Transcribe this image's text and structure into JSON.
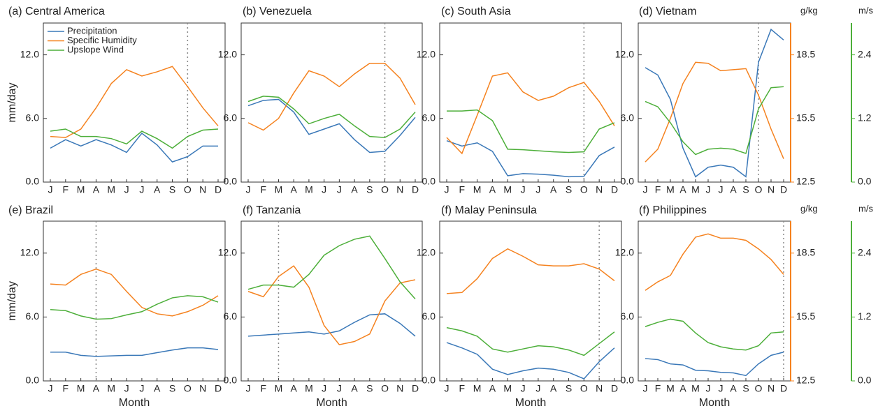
{
  "chart_data": [
    {
      "type": "line",
      "title": "(a) Central America",
      "categories": [
        "J",
        "F",
        "M",
        "A",
        "M",
        "J",
        "J",
        "A",
        "S",
        "O",
        "N",
        "D"
      ],
      "y_label": "mm/day",
      "vline_at": 9,
      "ylim": [
        0,
        15
      ],
      "yticks": [
        {
          "value": 0,
          "label": "0.0"
        },
        {
          "value": 6,
          "label": "6.0"
        },
        {
          "value": 12,
          "label": "12.0"
        }
      ],
      "y2lim": [
        12.5,
        20
      ],
      "y3lim": [
        0,
        3
      ],
      "series": [
        {
          "name": "Precipitation",
          "color": "#3a78b8",
          "values": [
            3.2,
            4.0,
            3.4,
            4.0,
            3.5,
            2.8,
            4.6,
            3.5,
            1.9,
            2.4,
            3.4,
            3.4
          ]
        },
        {
          "name": "Specific Humidity",
          "color": "#f5821f",
          "axis": "y2",
          "values": [
            14.65,
            14.6,
            15.0,
            16.0,
            17.15,
            17.8,
            17.5,
            17.7,
            17.95,
            17.0,
            16.0,
            15.15
          ]
        },
        {
          "name": "Upslope Wind",
          "color": "#4daf3a",
          "axis": "y3",
          "values": [
            0.96,
            1.0,
            0.86,
            0.86,
            0.82,
            0.72,
            0.96,
            0.82,
            0.64,
            0.86,
            0.98,
            1.0
          ]
        }
      ]
    },
    {
      "type": "line",
      "title": "(b) Venezuela",
      "categories": [
        "J",
        "F",
        "M",
        "A",
        "M",
        "J",
        "J",
        "A",
        "S",
        "O",
        "N",
        "D"
      ],
      "vline_at": 9,
      "ylim": [
        0,
        15
      ],
      "yticks": [
        {
          "value": 0,
          "label": "0.0"
        },
        {
          "value": 6,
          "label": "6.0"
        },
        {
          "value": 12,
          "label": "12.0"
        }
      ],
      "y2lim": [
        12.5,
        20
      ],
      "y3lim": [
        0,
        3
      ],
      "series": [
        {
          "color": "#3a78b8",
          "values": [
            7.2,
            7.7,
            7.8,
            6.6,
            4.5,
            5.0,
            5.5,
            4.0,
            2.8,
            2.9,
            4.4,
            6.1
          ]
        },
        {
          "color": "#f5821f",
          "axis": "y2",
          "values": [
            15.3,
            14.95,
            15.5,
            16.7,
            17.75,
            17.5,
            17.0,
            17.6,
            18.1,
            18.1,
            17.4,
            16.15
          ]
        },
        {
          "color": "#4daf3a",
          "axis": "y3",
          "values": [
            1.52,
            1.62,
            1.6,
            1.38,
            1.1,
            1.2,
            1.28,
            1.06,
            0.86,
            0.84,
            1.0,
            1.32
          ]
        }
      ]
    },
    {
      "type": "line",
      "title": "(c) South Asia",
      "categories": [
        "J",
        "F",
        "M",
        "A",
        "M",
        "J",
        "J",
        "A",
        "S",
        "O",
        "N",
        "D"
      ],
      "vline_at": 9,
      "ylim": [
        0,
        15
      ],
      "yticks": [
        {
          "value": 0,
          "label": "0.0"
        },
        {
          "value": 6,
          "label": "6.0"
        },
        {
          "value": 12,
          "label": "12.0"
        }
      ],
      "y2lim": [
        12.5,
        20
      ],
      "y3lim": [
        0,
        3
      ],
      "series": [
        {
          "color": "#3a78b8",
          "values": [
            3.9,
            3.4,
            3.7,
            2.9,
            0.6,
            0.8,
            0.75,
            0.65,
            0.5,
            0.55,
            2.5,
            3.3
          ]
        },
        {
          "color": "#f5821f",
          "axis": "y2",
          "values": [
            14.6,
            13.85,
            15.65,
            17.5,
            17.65,
            16.75,
            16.35,
            16.55,
            16.95,
            17.2,
            16.3,
            15.15
          ]
        },
        {
          "color": "#4daf3a",
          "axis": "y3",
          "values": [
            1.34,
            1.34,
            1.36,
            1.16,
            0.62,
            0.61,
            0.59,
            0.57,
            0.56,
            0.57,
            1.0,
            1.12
          ]
        }
      ]
    },
    {
      "type": "line",
      "title": "(d) Vietnam",
      "categories": [
        "J",
        "F",
        "M",
        "A",
        "M",
        "J",
        "J",
        "A",
        "S",
        "O",
        "N",
        "D"
      ],
      "vline_at": 9,
      "ylim": [
        0,
        15
      ],
      "yticks": [
        {
          "value": 0,
          "label": "0.0"
        },
        {
          "value": 6,
          "label": "6.0"
        },
        {
          "value": 12,
          "label": "12.0"
        }
      ],
      "y2lim": [
        12.5,
        20
      ],
      "y2ticks": [
        12.5,
        15.5,
        18.5
      ],
      "y2label": "g/kg",
      "y3lim": [
        0,
        3
      ],
      "y3ticks": [
        {
          "value": 0,
          "label": "0.0"
        },
        1.2,
        2.4
      ],
      "y3label": "m/s",
      "series": [
        {
          "color": "#3a78b8",
          "values": [
            10.8,
            10.1,
            7.8,
            3.2,
            0.5,
            1.4,
            1.6,
            1.4,
            0.5,
            11.3,
            14.4,
            13.4
          ]
        },
        {
          "color": "#f5821f",
          "axis": "y2",
          "values": [
            13.45,
            14.05,
            15.5,
            17.15,
            18.15,
            18.1,
            17.75,
            17.8,
            17.85,
            16.6,
            15.0,
            13.6
          ]
        },
        {
          "color": "#4daf3a",
          "axis": "y3",
          "values": [
            1.52,
            1.42,
            1.12,
            0.76,
            0.52,
            0.62,
            0.64,
            0.62,
            0.54,
            1.38,
            1.78,
            1.8
          ]
        }
      ]
    },
    {
      "type": "line",
      "title": "(e) Brazil",
      "categories": [
        "J",
        "F",
        "M",
        "A",
        "M",
        "J",
        "J",
        "A",
        "S",
        "O",
        "N",
        "D"
      ],
      "y_label": "mm/day",
      "x_label": "Month",
      "vline_at": 3,
      "ylim": [
        0,
        15
      ],
      "yticks": [
        {
          "value": 0,
          "label": "0.0"
        },
        {
          "value": 6,
          "label": "6.0"
        },
        {
          "value": 12,
          "label": "12.0"
        }
      ],
      "y2lim": [
        12.5,
        20
      ],
      "y3lim": [
        0,
        3
      ],
      "series": [
        {
          "color": "#3a78b8",
          "values": [
            2.7,
            2.7,
            2.4,
            2.3,
            2.35,
            2.4,
            2.4,
            2.65,
            2.9,
            3.1,
            3.1,
            2.95
          ]
        },
        {
          "color": "#f5821f",
          "axis": "y2",
          "values": [
            17.05,
            17.0,
            17.5,
            17.75,
            17.5,
            16.7,
            15.95,
            15.65,
            15.55,
            15.75,
            16.05,
            16.5
          ]
        },
        {
          "color": "#4daf3a",
          "axis": "y3",
          "values": [
            1.34,
            1.32,
            1.22,
            1.16,
            1.17,
            1.24,
            1.3,
            1.44,
            1.56,
            1.6,
            1.58,
            1.48
          ]
        }
      ]
    },
    {
      "type": "line",
      "title": "(f) Tanzania",
      "categories": [
        "J",
        "F",
        "M",
        "A",
        "M",
        "J",
        "J",
        "A",
        "S",
        "O",
        "N",
        "D"
      ],
      "x_label": "Month",
      "vline_at": 2,
      "ylim": [
        0,
        15
      ],
      "yticks": [
        {
          "value": 0,
          "label": "0.0"
        },
        {
          "value": 6,
          "label": "6.0"
        },
        {
          "value": 12,
          "label": "12.0"
        }
      ],
      "y2lim": [
        12.5,
        20
      ],
      "y3lim": [
        0,
        3
      ],
      "series": [
        {
          "color": "#3a78b8",
          "values": [
            4.2,
            4.3,
            4.4,
            4.5,
            4.6,
            4.4,
            4.7,
            5.5,
            6.2,
            6.3,
            5.4,
            4.2
          ]
        },
        {
          "color": "#f5821f",
          "axis": "y2",
          "values": [
            16.7,
            16.45,
            17.4,
            17.9,
            16.9,
            15.1,
            14.2,
            14.35,
            14.7,
            16.25,
            17.1,
            17.25
          ]
        },
        {
          "color": "#4daf3a",
          "axis": "y3",
          "values": [
            1.72,
            1.8,
            1.8,
            1.76,
            2.0,
            2.36,
            2.54,
            2.66,
            2.72,
            2.3,
            1.86,
            1.54
          ]
        }
      ]
    },
    {
      "type": "line",
      "title": "(f) Malay Peninsula",
      "categories": [
        "J",
        "F",
        "M",
        "A",
        "M",
        "J",
        "J",
        "A",
        "S",
        "O",
        "N",
        "D"
      ],
      "x_label": "Month",
      "vline_at": 10,
      "ylim": [
        0,
        15
      ],
      "yticks": [
        {
          "value": 0,
          "label": "0.0"
        },
        {
          "value": 6,
          "label": "6.0"
        },
        {
          "value": 12,
          "label": "12.0"
        }
      ],
      "y2lim": [
        12.5,
        20
      ],
      "y3lim": [
        0,
        3
      ],
      "series": [
        {
          "color": "#3a78b8",
          "values": [
            3.6,
            3.1,
            2.5,
            1.1,
            0.6,
            0.95,
            1.2,
            1.1,
            0.8,
            0.2,
            1.8,
            3.1
          ]
        },
        {
          "color": "#f5821f",
          "axis": "y2",
          "values": [
            16.6,
            16.65,
            17.3,
            18.25,
            18.7,
            18.35,
            17.95,
            17.9,
            17.9,
            18.0,
            17.75,
            17.2
          ]
        },
        {
          "color": "#4daf3a",
          "axis": "y3",
          "values": [
            1.0,
            0.94,
            0.84,
            0.6,
            0.54,
            0.6,
            0.66,
            0.64,
            0.58,
            0.48,
            0.7,
            0.92
          ]
        }
      ]
    },
    {
      "type": "line",
      "title": "(f) Philippines",
      "categories": [
        "J",
        "F",
        "M",
        "A",
        "M",
        "J",
        "J",
        "A",
        "S",
        "O",
        "N",
        "D"
      ],
      "x_label": "Month",
      "vline_at": 11,
      "ylim": [
        0,
        15
      ],
      "yticks": [
        {
          "value": 0,
          "label": "0.0"
        },
        {
          "value": 6,
          "label": "6.0"
        },
        {
          "value": 12,
          "label": "12.0"
        }
      ],
      "y2lim": [
        12.5,
        20
      ],
      "y2ticks": [
        12.5,
        15.5,
        18.5
      ],
      "y2label": "g/kg",
      "y3lim": [
        0,
        3
      ],
      "y3ticks": [
        {
          "value": 0,
          "label": "0.0"
        },
        1.2,
        2.4
      ],
      "y3label": "m/s",
      "series": [
        {
          "color": "#3a78b8",
          "values": [
            2.1,
            2.0,
            1.6,
            1.5,
            1.0,
            0.95,
            0.8,
            0.75,
            0.5,
            1.6,
            2.4,
            2.7
          ]
        },
        {
          "color": "#f5821f",
          "axis": "y2",
          "values": [
            16.75,
            17.15,
            17.45,
            18.45,
            19.25,
            19.4,
            19.2,
            19.2,
            19.1,
            18.7,
            18.2,
            17.5
          ]
        },
        {
          "color": "#4daf3a",
          "axis": "y3",
          "values": [
            1.02,
            1.1,
            1.16,
            1.12,
            0.9,
            0.72,
            0.64,
            0.6,
            0.58,
            0.66,
            0.9,
            0.92
          ]
        }
      ]
    }
  ]
}
